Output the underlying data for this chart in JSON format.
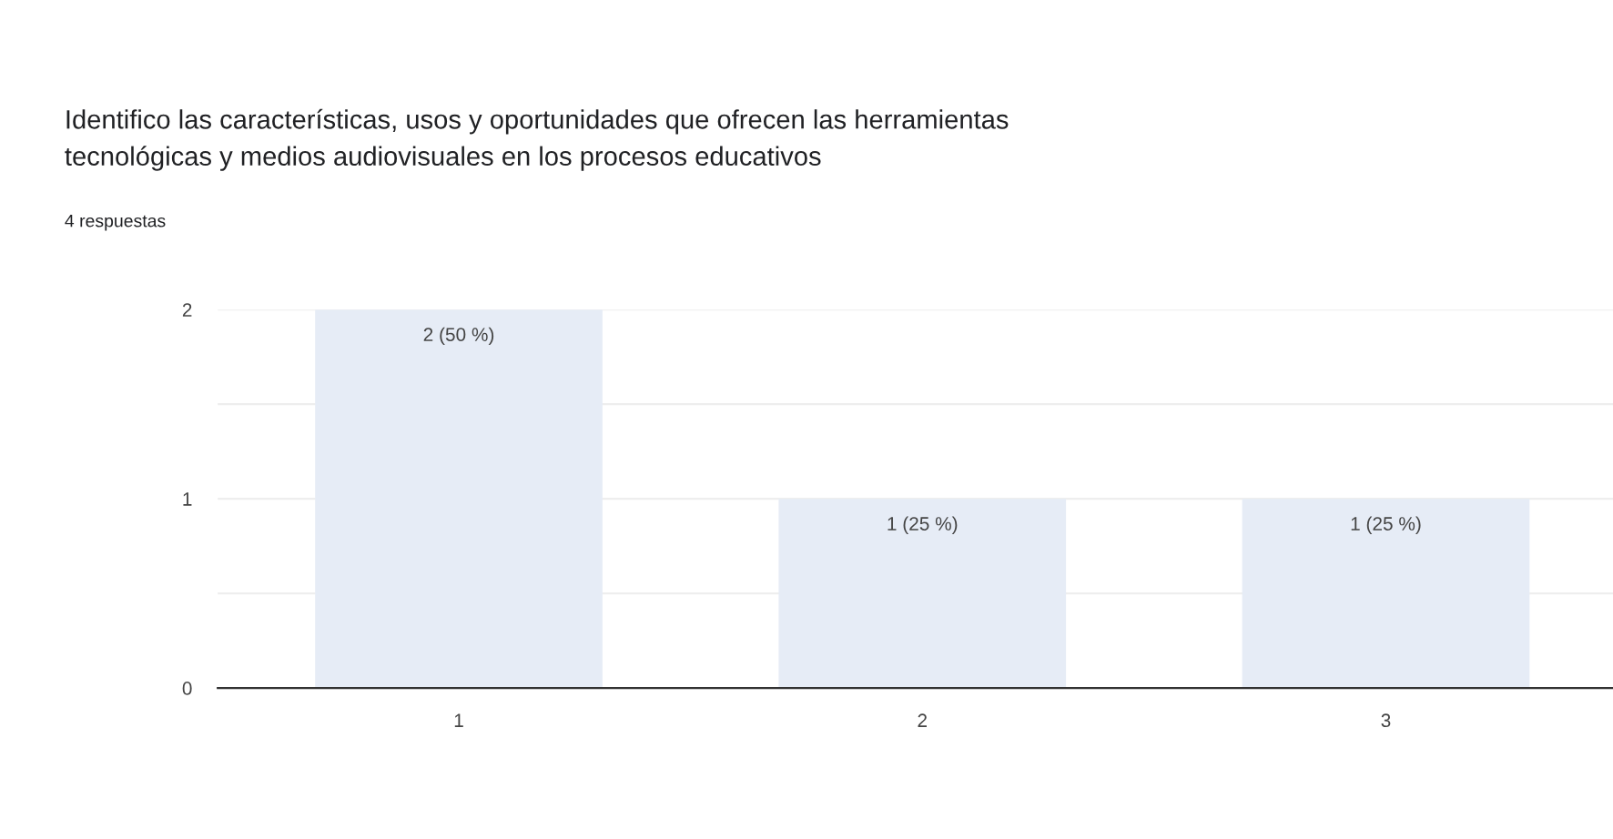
{
  "chart_data": {
    "type": "bar",
    "title": "Identifico las características, usos y oportunidades que ofrecen las herramientas\ntecnológicas y medios audiovisuales en los procesos educativos",
    "subtitle": "4 respuestas",
    "categories": [
      "1",
      "2",
      "3"
    ],
    "values": [
      2,
      1,
      1
    ],
    "color": "#e6ecf6",
    "value_labels": [
      "2 (50 %)",
      "1 (25 %)",
      "1 (25 %)"
    ],
    "ylim": [
      0,
      2
    ],
    "yticks": [
      0,
      {
        "value": 0.5,
        "label": null
      },
      1,
      {
        "value": 1.5,
        "label": null
      },
      2
    ],
    "grid": "y",
    "legend": false
  }
}
